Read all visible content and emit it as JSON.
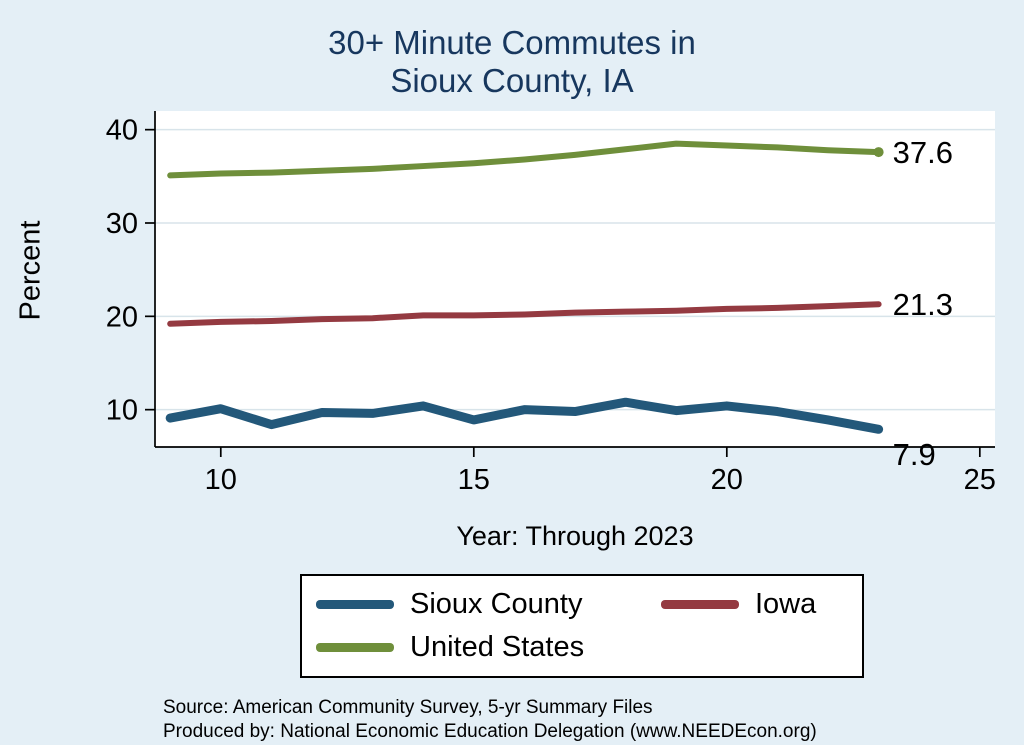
{
  "title": {
    "line1": "30+ Minute Commutes in",
    "line2": "Sioux County, IA"
  },
  "chart_data": {
    "type": "line",
    "title": "30+ Minute Commutes in Sioux County, IA",
    "xlabel": "Year: Through 2023",
    "ylabel": "Percent",
    "x": [
      9,
      10,
      11,
      12,
      13,
      14,
      15,
      16,
      17,
      18,
      19,
      20,
      21,
      22,
      23
    ],
    "series": [
      {
        "name": "Sioux County",
        "color": "#23587a",
        "line_width": 9,
        "values": [
          9.1,
          10.1,
          8.4,
          9.7,
          9.6,
          10.4,
          8.9,
          10.0,
          9.8,
          10.8,
          9.9,
          10.4,
          9.8,
          8.9,
          7.9
        ],
        "end_label": "7.9",
        "end_marker": false
      },
      {
        "name": "Iowa",
        "color": "#943a41",
        "line_width": 6,
        "values": [
          19.2,
          19.4,
          19.5,
          19.7,
          19.8,
          20.1,
          20.1,
          20.2,
          20.4,
          20.5,
          20.6,
          20.8,
          20.9,
          21.1,
          21.3
        ],
        "end_label": "21.3",
        "end_marker": false
      },
      {
        "name": "United States",
        "color": "#6f8f3b",
        "line_width": 6,
        "values": [
          35.1,
          35.3,
          35.4,
          35.6,
          35.8,
          36.1,
          36.4,
          36.8,
          37.3,
          37.9,
          38.5,
          38.3,
          38.1,
          37.8,
          37.6
        ],
        "end_label": "37.6",
        "end_marker": true
      }
    ],
    "xlim": [
      8.7,
      25.3
    ],
    "ylim": [
      6,
      42
    ],
    "x_ticks": [
      10,
      15,
      20,
      25
    ],
    "y_ticks": [
      10,
      20,
      30,
      40
    ],
    "grid": "horizontal",
    "legend_position": "bottom",
    "plot_background": "#ffffff",
    "page_background": "#e4eff6",
    "gridline_color": "#d8e4ea",
    "title_color": "#17375e"
  },
  "footer": {
    "source": "Source: American Community Survey, 5-yr Summary Files",
    "produced": "Produced by: National Economic Education Delegation (www.NEEDEcon.org)"
  }
}
